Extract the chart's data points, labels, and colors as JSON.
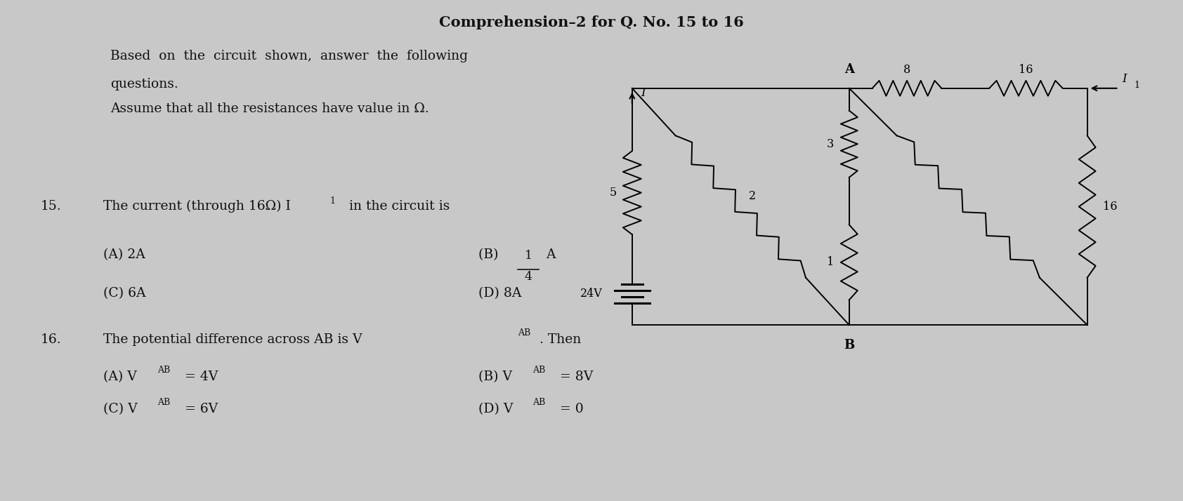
{
  "title": "Comprehension–2 for Q. No. 15 to 16",
  "background_color": "#c8c8c8",
  "text_color": "#111111",
  "intro_line1": "Based  on  the  circuit  shown,  answer  the  following",
  "intro_line2": "questions.",
  "intro_line3": "Assume that all the resistances have value in Ω.",
  "q15_num": "15.",
  "q15_text": "The current (through 16Ω) I",
  "q15_text2": "  in the circuit is",
  "q15_A": "(A) 2A",
  "q15_C": "(C) 6A",
  "q15_D": "(D) 8A",
  "q16_num": "16.",
  "q16_textA": "The potential difference across AB is V",
  "q16_textB": ". Then",
  "q16_A": "(A) V",
  "q16_A2": " = 4V",
  "q16_B": "(B) V",
  "q16_B2": " = 8V",
  "q16_C": "(C) V",
  "q16_C2": " = 6V",
  "q16_D": "(D) V",
  "q16_D2": " = 0",
  "lw": 1.4,
  "fs_body": 13.5,
  "fs_sub": 9,
  "fs_label": 11.5
}
